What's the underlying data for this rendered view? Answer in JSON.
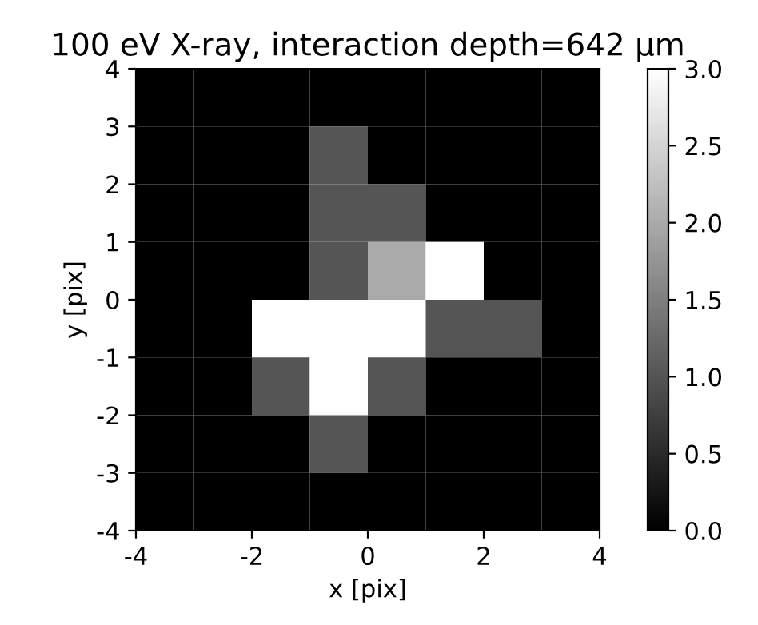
{
  "chart_data": {
    "type": "heatmap",
    "title": "100 eV X-ray, interaction depth=642 μm",
    "xlabel": "x [pix]",
    "ylabel": "y [pix]",
    "xlim": [
      -4,
      4
    ],
    "ylim": [
      -4,
      4
    ],
    "xticks": [
      -4,
      -2,
      0,
      2,
      4
    ],
    "yticks": [
      -4,
      -3,
      -2,
      -1,
      0,
      1,
      2,
      3,
      4
    ],
    "cells": [
      [
        0,
        0,
        0,
        0,
        0,
        0,
        0,
        0
      ],
      [
        0,
        0,
        0,
        1,
        0,
        0,
        0,
        0
      ],
      [
        0,
        0,
        0,
        1,
        1,
        0,
        0,
        0
      ],
      [
        0,
        0,
        0,
        1,
        2,
        3,
        0,
        0
      ],
      [
        0,
        0,
        3,
        3,
        3,
        1,
        1,
        0
      ],
      [
        0,
        0,
        1,
        3,
        1,
        0,
        0,
        0
      ],
      [
        0,
        0,
        0,
        1,
        0,
        0,
        0,
        0
      ],
      [
        0,
        0,
        0,
        0,
        0,
        0,
        0,
        0
      ]
    ],
    "clim": [
      0,
      3
    ],
    "cticks": [
      {
        "value": 0,
        "label": "0.0"
      },
      0.5,
      {
        "value": 1,
        "label": "1.0"
      },
      1.5,
      {
        "value": 2,
        "label": "2.0"
      },
      2.5,
      {
        "value": 3,
        "label": "3.0"
      }
    ],
    "grid": false
  }
}
